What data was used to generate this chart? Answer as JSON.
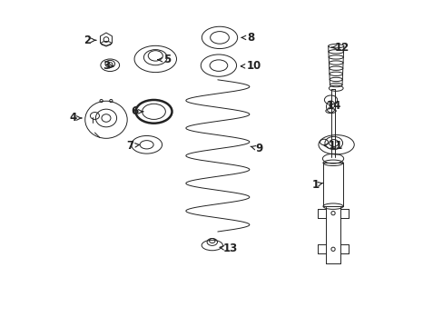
{
  "bg_color": "#ffffff",
  "line_color": "#222222",
  "fig_width": 4.89,
  "fig_height": 3.6,
  "dpi": 100,
  "label_fontsize": 8.5,
  "label_positions": {
    "2": [
      0.085,
      0.88,
      0.12,
      0.88
    ],
    "3": [
      0.145,
      0.8,
      0.168,
      0.8
    ],
    "4": [
      0.04,
      0.64,
      0.068,
      0.64
    ],
    "5": [
      0.33,
      0.82,
      0.3,
      0.82
    ],
    "6": [
      0.23,
      0.66,
      0.258,
      0.66
    ],
    "7": [
      0.218,
      0.555,
      0.248,
      0.558
    ],
    "8": [
      0.59,
      0.888,
      0.55,
      0.888
    ],
    "9": [
      0.615,
      0.545,
      0.58,
      0.555
    ],
    "10": [
      0.6,
      0.8,
      0.555,
      0.8
    ],
    "11": [
      0.85,
      0.555,
      0.812,
      0.555
    ],
    "12": [
      0.87,
      0.858,
      0.838,
      0.858
    ],
    "13": [
      0.525,
      0.238,
      0.49,
      0.242
    ],
    "14": [
      0.845,
      0.678,
      0.82,
      0.678
    ],
    "1": [
      0.79,
      0.435,
      0.812,
      0.44
    ]
  }
}
